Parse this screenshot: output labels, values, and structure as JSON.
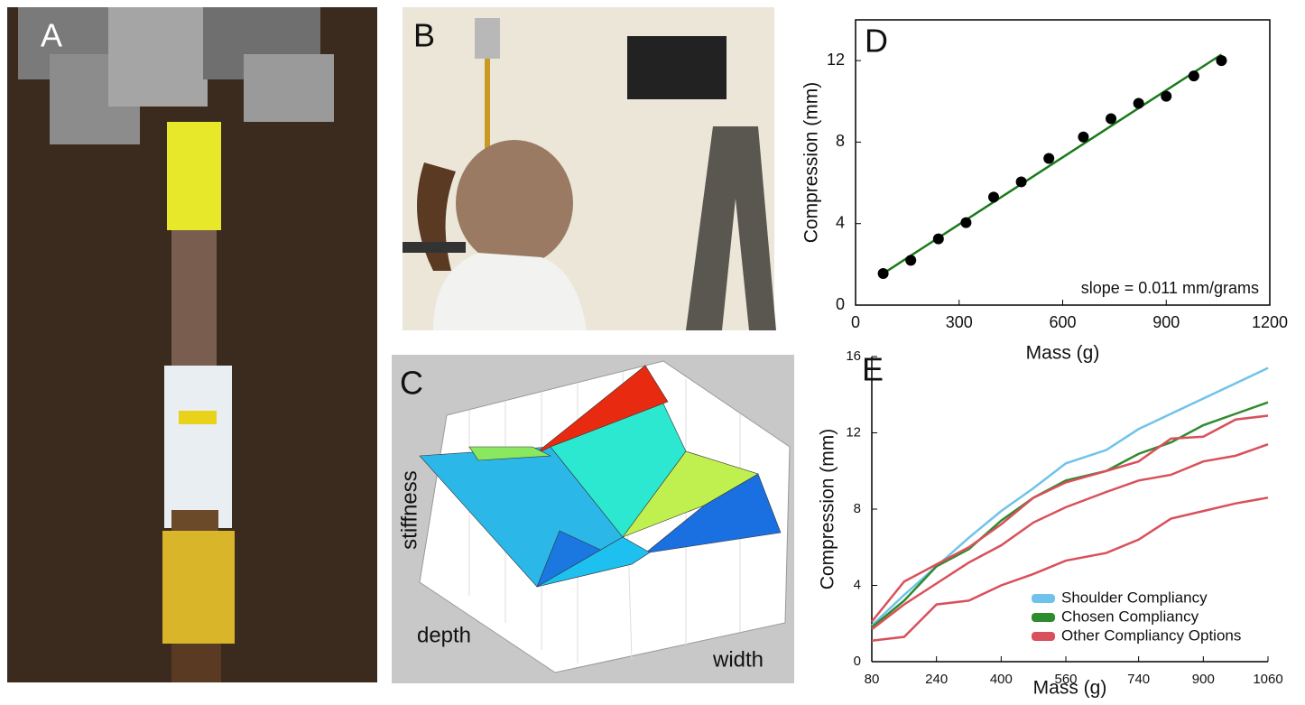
{
  "panels": {
    "a": "A",
    "b": "B",
    "c": {
      "label": "C",
      "z_label": "stiffness",
      "y_label": "depth",
      "x_label": "width"
    }
  },
  "chart_data": [
    {
      "type": "scatter",
      "label": "D",
      "x_label": "Mass (g)",
      "y_label": "Compression (mm)",
      "annotation": "slope = 0.011 mm/grams",
      "x": [
        80,
        160,
        240,
        320,
        400,
        480,
        560,
        660,
        740,
        820,
        900,
        980,
        1060
      ],
      "series": [
        {
          "color": "#000000",
          "values": [
            1.55,
            2.2,
            3.25,
            4.05,
            5.3,
            6.05,
            7.2,
            8.25,
            9.15,
            9.9,
            10.25,
            11.25,
            12.0
          ]
        }
      ],
      "fit": {
        "color": "#1a7a1a",
        "x": [
          80,
          1060
        ],
        "values": [
          1.55,
          12.3
        ]
      },
      "xlim": [
        0,
        1200
      ],
      "xticks": [
        0,
        300,
        600,
        900,
        1200
      ],
      "ylim": [
        0,
        14
      ],
      "yticks": [
        0,
        4,
        8,
        12
      ]
    },
    {
      "type": "line",
      "label": "E",
      "x_label": "Mass (g)",
      "y_label": "Compression (mm)",
      "x": [
        80,
        160,
        240,
        320,
        400,
        480,
        560,
        660,
        740,
        820,
        900,
        980,
        1060
      ],
      "series": [
        {
          "name": "Shoulder Compliancy",
          "color": "#6fc3ea",
          "values": [
            1.9,
            3.5,
            5.0,
            6.5,
            7.9,
            9.1,
            10.4,
            11.1,
            12.2,
            13.0,
            13.8,
            14.6,
            15.4
          ]
        },
        {
          "name": "Chosen Compliancy",
          "color": "#2e8b2e",
          "values": [
            1.8,
            3.2,
            5.0,
            5.9,
            7.4,
            8.6,
            9.5,
            10.0,
            10.9,
            11.5,
            12.4,
            13.0,
            13.6
          ]
        },
        {
          "name": "Other Compliancy Options",
          "color": "#d9505a",
          "values": [
            2.1,
            4.2,
            5.1,
            6.0,
            7.2,
            8.6,
            9.4,
            10.0,
            10.5,
            11.7,
            11.8,
            12.7,
            12.9
          ]
        },
        {
          "color": "#d9505a",
          "values": [
            1.7,
            3.0,
            4.1,
            5.2,
            6.1,
            7.3,
            8.1,
            8.9,
            9.5,
            9.8,
            10.5,
            10.8,
            11.4
          ]
        },
        {
          "color": "#d9505a",
          "values": [
            1.1,
            1.3,
            3.0,
            3.2,
            4.0,
            4.6,
            5.3,
            5.7,
            6.4,
            7.5,
            7.9,
            8.3,
            8.6
          ]
        }
      ],
      "xlim": [
        80,
        1060
      ],
      "xticks": [
        80,
        240,
        400,
        560,
        740,
        900,
        1060
      ],
      "ylim": [
        0,
        16
      ],
      "yticks": [
        0,
        4,
        8,
        12,
        16
      ]
    }
  ]
}
